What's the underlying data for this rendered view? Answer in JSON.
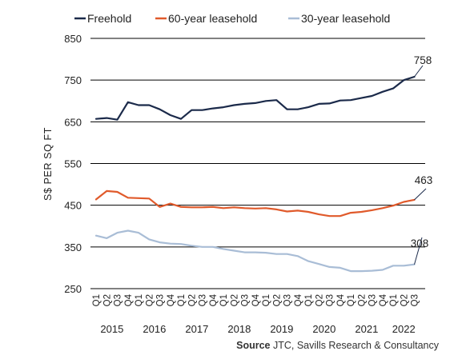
{
  "chart_data": {
    "type": "line",
    "ylabel": "S$ PER SQ FT",
    "ylim": [
      250,
      850
    ],
    "yticks": [
      250,
      350,
      450,
      550,
      650,
      750,
      850
    ],
    "grid": "horizontal",
    "legend_position": "top",
    "categories": [
      "Q1",
      "Q2",
      "Q3",
      "Q4",
      "Q1",
      "Q2",
      "Q3",
      "Q4",
      "Q1",
      "Q2",
      "Q3",
      "Q4",
      "Q1",
      "Q2",
      "Q3",
      "Q4",
      "Q1",
      "Q2",
      "Q3",
      "Q4",
      "Q1",
      "Q2",
      "Q3",
      "Q4",
      "Q1",
      "Q2",
      "Q3",
      "Q4",
      "Q1",
      "Q2",
      "Q3"
    ],
    "years": [
      {
        "label": "2015",
        "start": 0,
        "end": 3
      },
      {
        "label": "2016",
        "start": 4,
        "end": 7
      },
      {
        "label": "2017",
        "start": 8,
        "end": 11
      },
      {
        "label": "2018",
        "start": 12,
        "end": 15
      },
      {
        "label": "2019",
        "start": 16,
        "end": 19
      },
      {
        "label": "2020",
        "start": 20,
        "end": 23
      },
      {
        "label": "2021",
        "start": 24,
        "end": 27
      },
      {
        "label": "2022",
        "start": 28,
        "end": 30
      }
    ],
    "series": [
      {
        "name": "Freehold",
        "color": "#1b2a4a",
        "end_label": "758",
        "values": [
          657,
          659,
          655,
          697,
          690,
          690,
          680,
          666,
          657,
          678,
          678,
          682,
          685,
          690,
          693,
          695,
          700,
          702,
          680,
          680,
          685,
          693,
          694,
          701,
          702,
          707,
          712,
          722,
          730,
          750,
          758
        ]
      },
      {
        "name": "60-year leasehold",
        "color": "#e05a2b",
        "end_label": "463",
        "values": [
          464,
          484,
          482,
          468,
          467,
          466,
          446,
          454,
          446,
          445,
          445,
          446,
          443,
          445,
          443,
          442,
          443,
          440,
          435,
          437,
          434,
          428,
          424,
          424,
          432,
          434,
          438,
          443,
          449,
          458,
          463
        ]
      },
      {
        "name": "30-year leasehold",
        "color": "#a9bdd6",
        "end_label": "308",
        "values": [
          377,
          371,
          384,
          389,
          384,
          368,
          361,
          358,
          357,
          353,
          350,
          350,
          345,
          341,
          337,
          337,
          336,
          333,
          333,
          328,
          316,
          309,
          302,
          300,
          292,
          292,
          293,
          295,
          305,
          305,
          308
        ]
      }
    ]
  },
  "source": {
    "label": "Source",
    "text": " JTC, Savills Research & Consultancy"
  }
}
